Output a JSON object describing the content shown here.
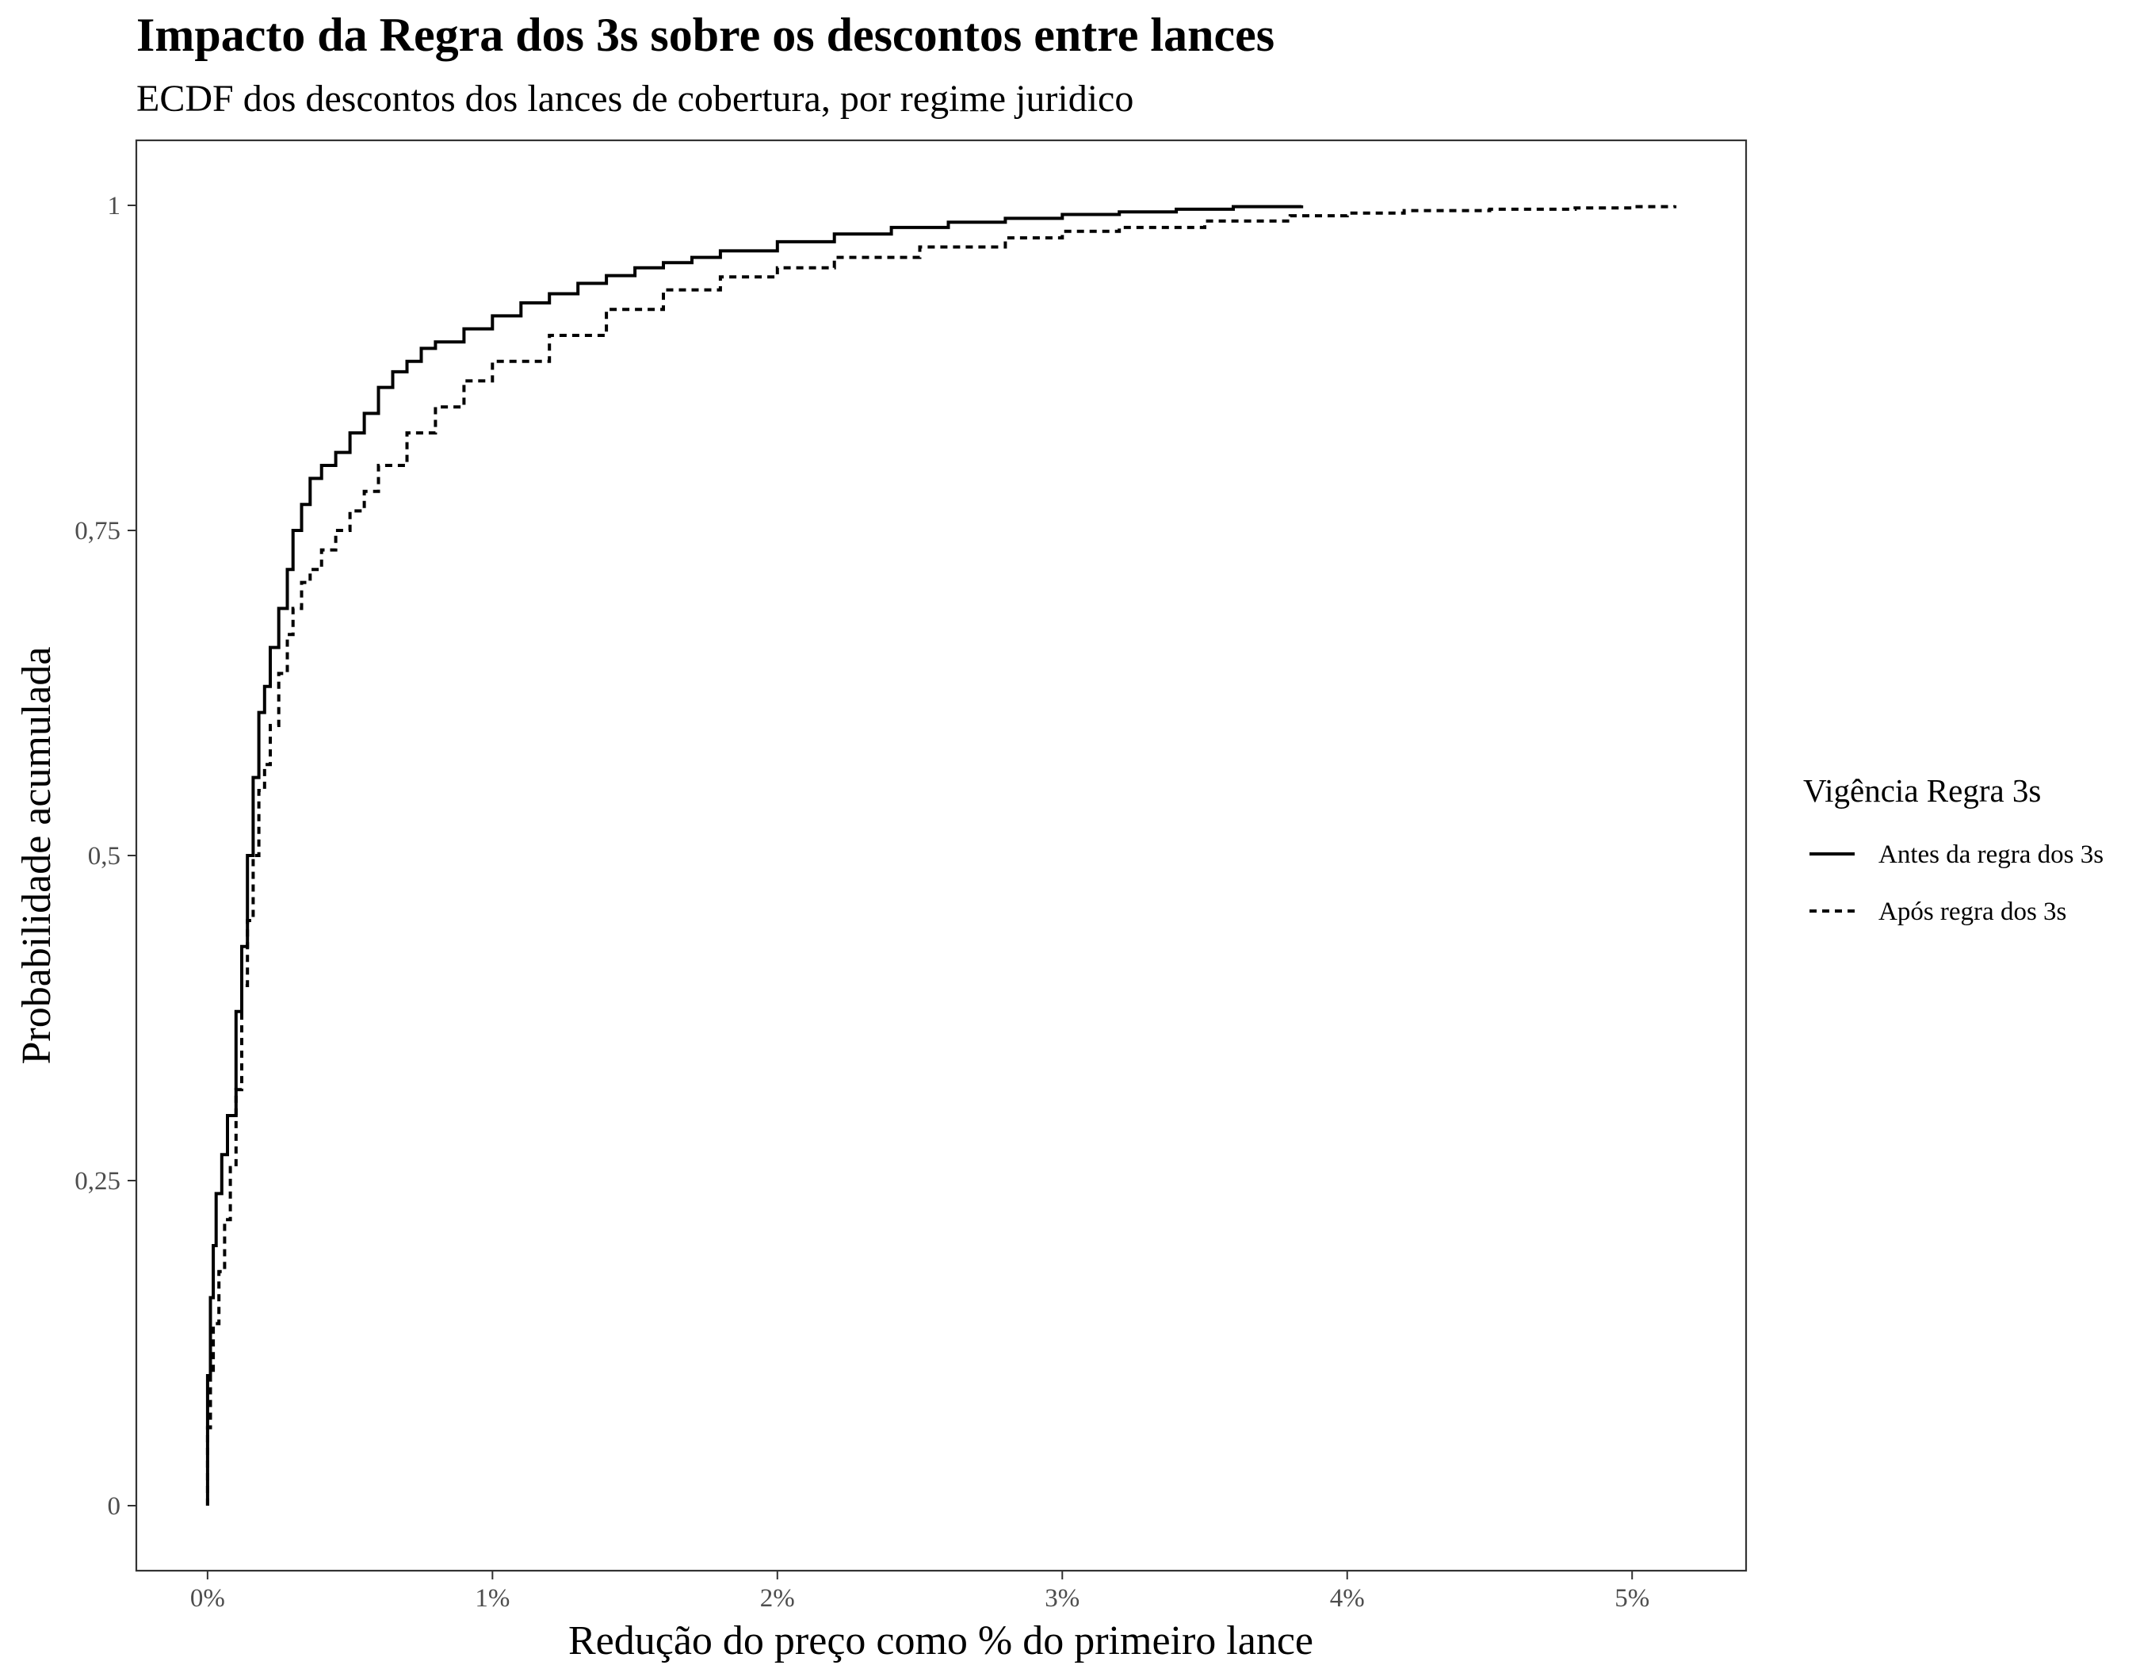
{
  "chart_data": {
    "type": "line",
    "subtype": "ecdf",
    "title": "Impacto da Regra dos 3s sobre os descontos entre lances",
    "subtitle": "ECDF dos descontos dos lances de cobertura, por regime juridico",
    "xlabel": "Redução do preço como % do primeiro lance",
    "ylabel": "Probabilidade acumulada",
    "xlim": [
      -0.25,
      5.4
    ],
    "ylim": [
      -0.05,
      1.05
    ],
    "x_ticks": [
      {
        "value": 0,
        "label": "0%"
      },
      {
        "value": 1,
        "label": "1%"
      },
      {
        "value": 2,
        "label": "2%"
      },
      {
        "value": 3,
        "label": "3%"
      },
      {
        "value": 4,
        "label": "4%"
      },
      {
        "value": 5,
        "label": "5%"
      }
    ],
    "y_ticks": [
      {
        "value": 0,
        "label": "0"
      },
      {
        "value": 0.25,
        "label": "0,25"
      },
      {
        "value": 0.5,
        "label": "0,5"
      },
      {
        "value": 0.75,
        "label": "0,75"
      },
      {
        "value": 1,
        "label": "1"
      }
    ],
    "grid": false,
    "legend_position": "right",
    "legend_title": "Vigência Regra 3s",
    "series": [
      {
        "name": "Antes da regra dos 3s",
        "linetype": "solid",
        "color": "#000000",
        "x": [
          0,
          0.0,
          0.01,
          0.02,
          0.03,
          0.05,
          0.07,
          0.1,
          0.12,
          0.14,
          0.16,
          0.18,
          0.2,
          0.22,
          0.25,
          0.28,
          0.3,
          0.33,
          0.36,
          0.4,
          0.45,
          0.5,
          0.55,
          0.6,
          0.65,
          0.7,
          0.75,
          0.8,
          0.9,
          1.0,
          1.1,
          1.2,
          1.3,
          1.4,
          1.5,
          1.6,
          1.7,
          1.8,
          2.0,
          2.2,
          2.4,
          2.6,
          2.8,
          3.0,
          3.2,
          3.4,
          3.6,
          3.84
        ],
        "y": [
          0,
          0.1,
          0.16,
          0.2,
          0.24,
          0.27,
          0.3,
          0.38,
          0.43,
          0.5,
          0.56,
          0.61,
          0.63,
          0.66,
          0.69,
          0.72,
          0.75,
          0.77,
          0.79,
          0.8,
          0.81,
          0.825,
          0.84,
          0.86,
          0.872,
          0.88,
          0.89,
          0.895,
          0.905,
          0.915,
          0.925,
          0.932,
          0.94,
          0.946,
          0.952,
          0.956,
          0.96,
          0.965,
          0.972,
          0.978,
          0.983,
          0.987,
          0.99,
          0.993,
          0.995,
          0.997,
          0.999,
          1.0
        ]
      },
      {
        "name": "Após regra dos 3s",
        "linetype": "dashed",
        "color": "#000000",
        "x": [
          0,
          0.0,
          0.01,
          0.02,
          0.04,
          0.06,
          0.08,
          0.1,
          0.12,
          0.14,
          0.16,
          0.18,
          0.2,
          0.22,
          0.25,
          0.28,
          0.3,
          0.33,
          0.36,
          0.4,
          0.45,
          0.5,
          0.55,
          0.6,
          0.7,
          0.8,
          0.9,
          1.0,
          1.2,
          1.4,
          1.6,
          1.8,
          2.0,
          2.2,
          2.5,
          2.8,
          3.0,
          3.2,
          3.5,
          3.8,
          4.0,
          4.2,
          4.5,
          4.8,
          5.0,
          5.15
        ],
        "y": [
          0,
          0.06,
          0.1,
          0.14,
          0.18,
          0.22,
          0.26,
          0.32,
          0.4,
          0.45,
          0.5,
          0.55,
          0.57,
          0.6,
          0.64,
          0.67,
          0.69,
          0.71,
          0.72,
          0.735,
          0.75,
          0.765,
          0.78,
          0.8,
          0.825,
          0.845,
          0.865,
          0.88,
          0.9,
          0.92,
          0.935,
          0.945,
          0.952,
          0.96,
          0.968,
          0.975,
          0.98,
          0.983,
          0.988,
          0.992,
          0.994,
          0.996,
          0.997,
          0.998,
          0.999,
          1.0
        ]
      }
    ]
  }
}
